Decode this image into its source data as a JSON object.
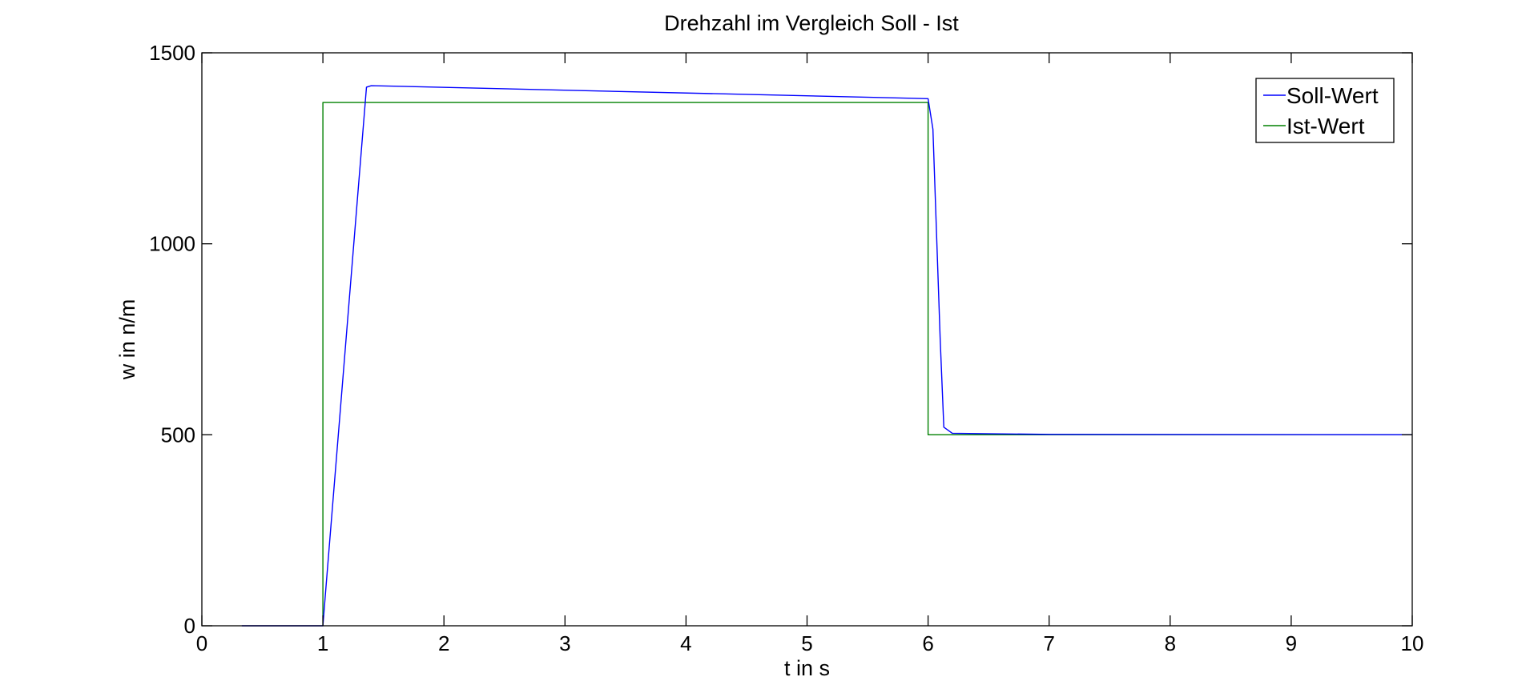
{
  "chart_data": {
    "type": "line",
    "title": "Drehzahl im Vergleich Soll - Ist",
    "xlabel": "t in s",
    "ylabel": "w in n/m",
    "xlim": [
      0,
      10
    ],
    "ylim": [
      0,
      1500
    ],
    "xticks": [
      "0",
      "1",
      "2",
      "3",
      "4",
      "5",
      "6",
      "7",
      "8",
      "9",
      "10"
    ],
    "yticks": [
      "0",
      "500",
      "1000",
      "1500"
    ],
    "grid": false,
    "legend_position": "top-right",
    "series": [
      {
        "name": "Soll-Wert",
        "color": "#0000ff",
        "x": [
          0.33,
          1.0,
          1.02,
          1.36,
          1.4,
          6.0,
          6.04,
          6.1,
          6.13,
          6.2,
          7.0,
          10.0
        ],
        "y": [
          0,
          0,
          80,
          1410,
          1414,
          1380,
          1300,
          750,
          520,
          504,
          501,
          500
        ]
      },
      {
        "name": "Ist-Wert",
        "color": "#008000",
        "x": [
          1.0,
          1.0,
          6.0,
          6.0,
          10.0
        ],
        "y": [
          0,
          1370,
          1370,
          500,
          500
        ]
      }
    ]
  }
}
